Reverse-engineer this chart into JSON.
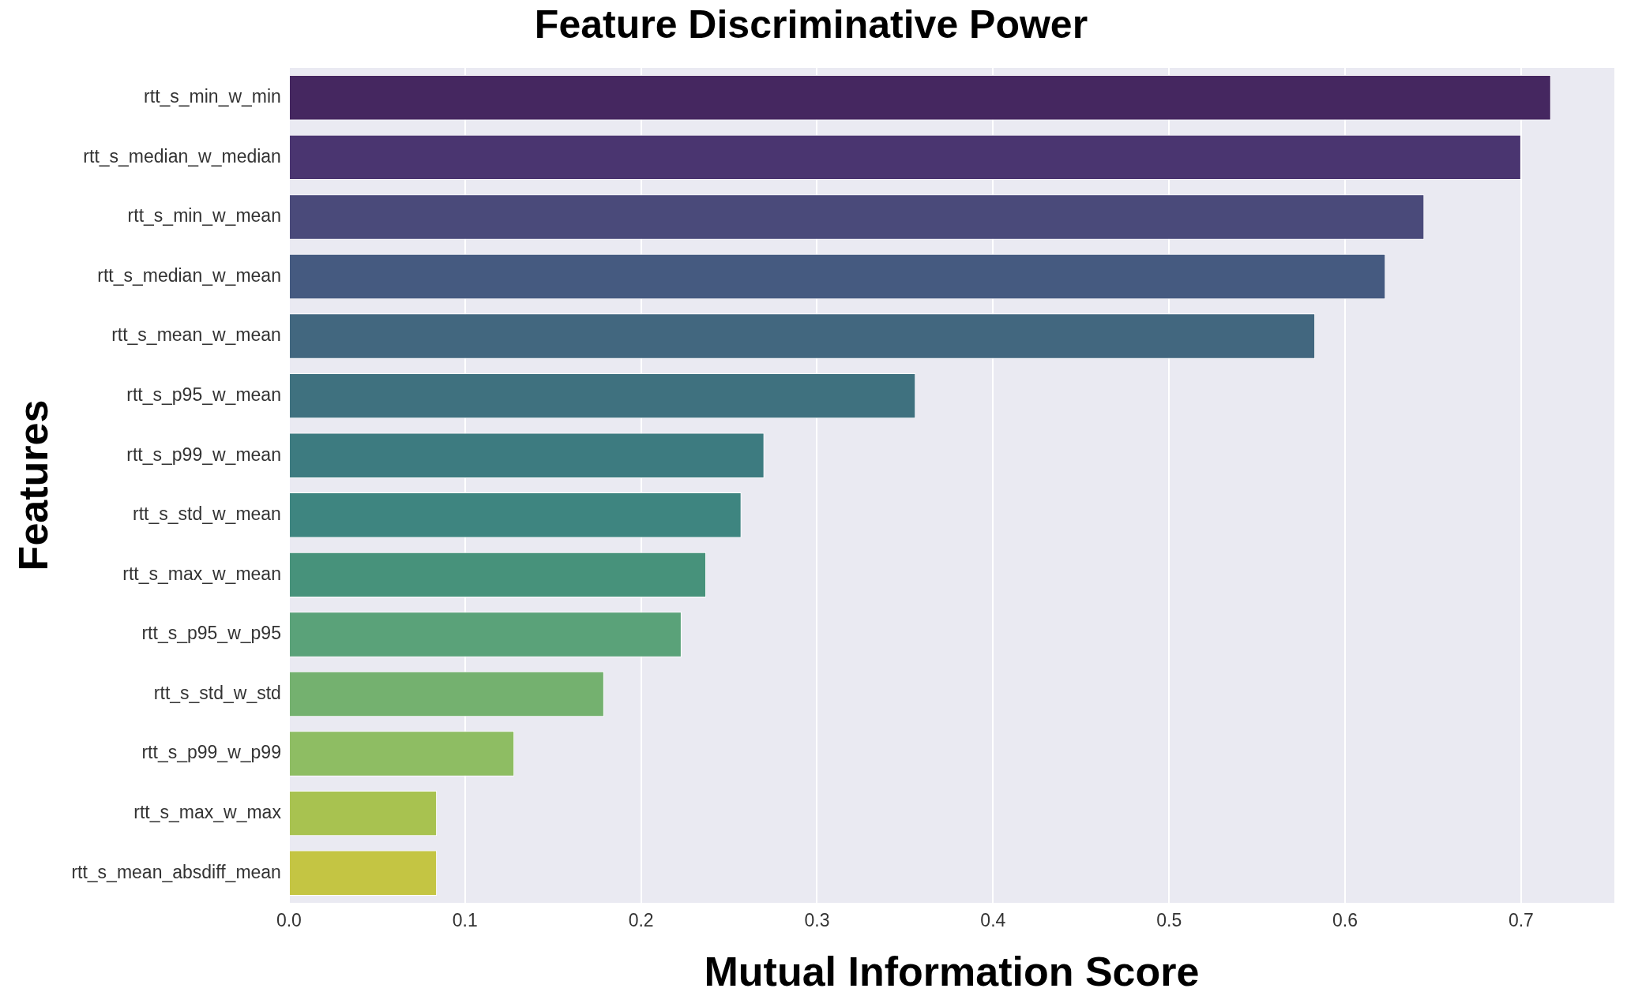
{
  "chart_data": {
    "type": "bar",
    "orientation": "horizontal",
    "title": "Feature Discriminative Power",
    "xlabel": "Mutual Information Score",
    "ylabel": "Features",
    "categories": [
      "rtt_s_min_w_min",
      "rtt_s_median_w_median",
      "rtt_s_min_w_mean",
      "rtt_s_median_w_mean",
      "rtt_s_mean_w_mean",
      "rtt_s_p95_w_mean",
      "rtt_s_p99_w_mean",
      "rtt_s_std_w_mean",
      "rtt_s_max_w_mean",
      "rtt_s_p95_w_p95",
      "rtt_s_std_w_std",
      "rtt_s_p99_w_p99",
      "rtt_s_max_w_max",
      "rtt_s_mean_absdiff_mean"
    ],
    "values": [
      0.717,
      0.7,
      0.645,
      0.623,
      0.583,
      0.356,
      0.27,
      0.257,
      0.237,
      0.223,
      0.179,
      0.128,
      0.084,
      0.084
    ],
    "colors": [
      "#452760",
      "#4a3570",
      "#4a4a7a",
      "#455a80",
      "#42677f",
      "#3f717f",
      "#3d7b80",
      "#3e8580",
      "#47927b",
      "#5aa279",
      "#74b16f",
      "#8ebd63",
      "#a8c250",
      "#c4c543"
    ],
    "xlim": [
      0,
      0.753
    ],
    "xticks": [
      {
        "value": 0,
        "label": "0.0"
      },
      0.1,
      0.2,
      0.3,
      0.4,
      0.5,
      0.6,
      0.7
    ],
    "grid": "x",
    "legend": false
  }
}
